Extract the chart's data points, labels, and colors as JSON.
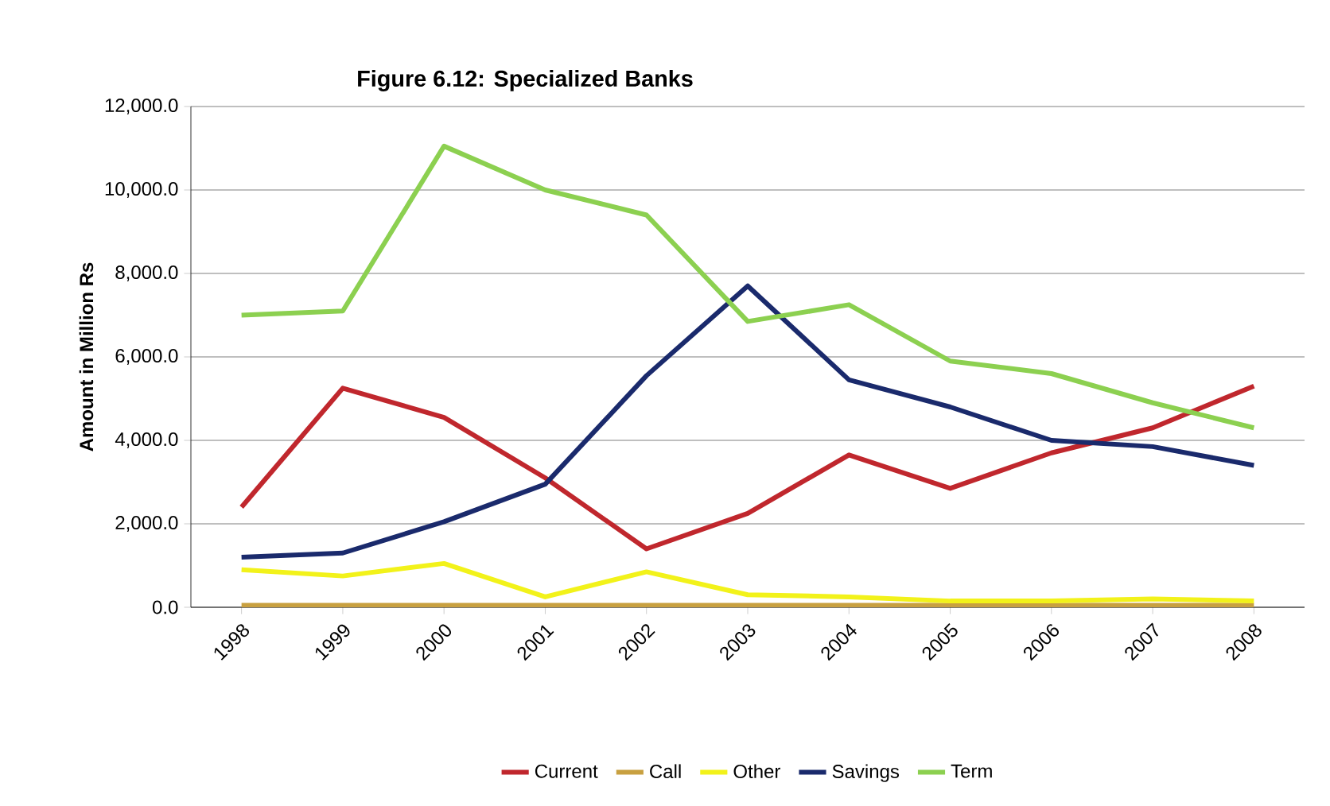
{
  "chart_data": {
    "type": "line",
    "title": "Figure 6.12: Specialized Banks",
    "ylabel": "Amount in Million Rs",
    "categories": [
      "1998",
      "1999",
      "2000",
      "2001",
      "2002",
      "2003",
      "2004",
      "2005",
      "2006",
      "2007",
      "2008"
    ],
    "series": [
      {
        "name": "Current",
        "color": "#c0272d",
        "values": [
          2400,
          5250,
          4550,
          3100,
          1400,
          2250,
          3650,
          2850,
          3700,
          4300,
          5300
        ]
      },
      {
        "name": "Call",
        "color": "#c8a040",
        "values": [
          50,
          50,
          50,
          50,
          50,
          50,
          50,
          50,
          50,
          50,
          50
        ]
      },
      {
        "name": "Other",
        "color": "#f2f21a",
        "values": [
          900,
          750,
          1050,
          250,
          850,
          300,
          250,
          150,
          150,
          200,
          150
        ]
      },
      {
        "name": "Savings",
        "color": "#1a2a6c",
        "values": [
          1200,
          1300,
          2050,
          2950,
          5550,
          7700,
          5450,
          4800,
          4000,
          3850,
          3400
        ]
      },
      {
        "name": "Term",
        "color": "#8cd050",
        "values": [
          7000,
          7100,
          11050,
          10000,
          9400,
          6850,
          7250,
          5900,
          5600,
          4900,
          4300
        ]
      }
    ],
    "ylim": [
      0,
      12000
    ],
    "yticks": [
      {
        "value": 0,
        "label": "0.0"
      },
      {
        "value": 2000,
        "label": "2,000.0"
      },
      {
        "value": 4000,
        "label": "4,000.0"
      },
      {
        "value": 6000,
        "label": "6,000.0"
      },
      {
        "value": 8000,
        "label": "8,000.0"
      },
      {
        "value": 10000,
        "label": "10,000.0"
      },
      {
        "value": 12000,
        "label": "12,000.0"
      }
    ],
    "grid": "y",
    "legend": "bottom",
    "marker": "none",
    "line_style": "solid"
  }
}
